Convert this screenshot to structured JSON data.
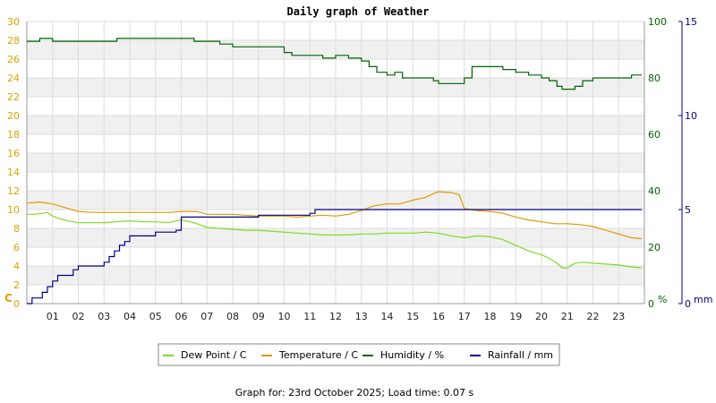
{
  "chart_data": {
    "type": "line",
    "title": "Daily graph of Weather",
    "footer": "Graph for: 23rd October 2025; Load time: 0.07 s",
    "x_ticks": [
      "01",
      "02",
      "03",
      "04",
      "05",
      "06",
      "07",
      "08",
      "09",
      "10",
      "11",
      "12",
      "13",
      "14",
      "15",
      "16",
      "17",
      "18",
      "19",
      "20",
      "21",
      "22",
      "23"
    ],
    "xlim": [
      0,
      24
    ],
    "axes": {
      "left": {
        "unit": "C",
        "min": 0,
        "max": 30,
        "ticks": [
          "0",
          "2",
          "4",
          "6",
          "8",
          "10",
          "12",
          "14",
          "16",
          "18",
          "20",
          "22",
          "24",
          "26",
          "28",
          "30"
        ],
        "color": "#e0a000"
      },
      "mid": {
        "unit": "%",
        "min": 0,
        "max": 100,
        "ticks": [
          "0",
          "20",
          "40",
          "60",
          "80",
          "100"
        ],
        "color": "#006400"
      },
      "right": {
        "unit": "mm",
        "min": 0,
        "max": 15,
        "ticks": [
          "0",
          "5",
          "10",
          "15"
        ],
        "color": "#00008b"
      }
    },
    "grid": true,
    "legend_position": "bottom",
    "series": [
      {
        "name": "Dew Point / C",
        "axis": "left",
        "color": "#7ddc1f",
        "x": [
          0,
          0.3,
          0.6,
          0.8,
          1.0,
          1.3,
          1.6,
          2.0,
          2.5,
          3.0,
          3.5,
          4.0,
          4.5,
          5.0,
          5.5,
          6.0,
          6.5,
          7.0,
          7.5,
          8.0,
          8.5,
          9.0,
          9.5,
          10.0,
          10.5,
          11.0,
          11.5,
          12.0,
          12.5,
          13.0,
          13.5,
          14.0,
          14.5,
          15.0,
          15.5,
          16.0,
          16.5,
          17.0,
          17.5,
          18.0,
          18.5,
          19.0,
          19.5,
          20.0,
          20.3,
          20.6,
          20.8,
          21.0,
          21.3,
          21.6,
          22.0,
          22.5,
          23.0,
          23.5,
          23.9
        ],
        "y": [
          9.5,
          9.5,
          9.6,
          9.7,
          9.3,
          9.0,
          8.8,
          8.6,
          8.6,
          8.6,
          8.7,
          8.8,
          8.7,
          8.7,
          8.6,
          8.9,
          8.6,
          8.1,
          8.0,
          7.9,
          7.8,
          7.8,
          7.7,
          7.6,
          7.5,
          7.4,
          7.3,
          7.3,
          7.3,
          7.4,
          7.4,
          7.5,
          7.5,
          7.5,
          7.6,
          7.5,
          7.2,
          7.0,
          7.2,
          7.1,
          6.8,
          6.2,
          5.6,
          5.2,
          4.8,
          4.3,
          3.8,
          3.8,
          4.3,
          4.4,
          4.3,
          4.2,
          4.1,
          3.9,
          3.8
        ]
      },
      {
        "name": "Temperature / C",
        "axis": "left",
        "color": "#e09a00",
        "x": [
          0,
          0.5,
          1.0,
          1.5,
          2.0,
          2.5,
          3.0,
          3.5,
          4.0,
          4.5,
          5.0,
          5.5,
          6.0,
          6.3,
          6.6,
          7.0,
          7.5,
          8.0,
          8.5,
          9.0,
          9.5,
          10.0,
          10.5,
          11.0,
          11.5,
          12.0,
          12.5,
          13.0,
          13.5,
          14.0,
          14.5,
          15.0,
          15.5,
          15.8,
          16.0,
          16.5,
          16.8,
          17.0,
          17.5,
          18.0,
          18.5,
          19.0,
          19.5,
          20.0,
          20.5,
          21.0,
          21.5,
          22.0,
          22.5,
          23.0,
          23.5,
          23.9
        ],
        "y": [
          10.7,
          10.8,
          10.6,
          10.2,
          9.8,
          9.7,
          9.7,
          9.7,
          9.7,
          9.7,
          9.7,
          9.7,
          9.8,
          9.8,
          9.8,
          9.5,
          9.5,
          9.5,
          9.4,
          9.3,
          9.3,
          9.3,
          9.2,
          9.3,
          9.4,
          9.3,
          9.5,
          9.9,
          10.4,
          10.6,
          10.6,
          11.0,
          11.3,
          11.7,
          11.9,
          11.8,
          11.6,
          10.1,
          9.9,
          9.8,
          9.6,
          9.2,
          8.9,
          8.7,
          8.5,
          8.5,
          8.4,
          8.2,
          7.8,
          7.4,
          7.0,
          6.9
        ]
      },
      {
        "name": "Humidity / %",
        "axis": "mid",
        "color": "#006400",
        "x": [
          0,
          0.5,
          1.0,
          1.5,
          2.0,
          2.5,
          3.0,
          3.5,
          4.0,
          4.5,
          5.0,
          5.5,
          6.0,
          6.5,
          7.0,
          7.5,
          8.0,
          8.5,
          9.0,
          9.5,
          10.0,
          10.3,
          10.6,
          11.0,
          11.5,
          12.0,
          12.5,
          13.0,
          13.3,
          13.6,
          14.0,
          14.3,
          14.6,
          15.0,
          15.5,
          15.8,
          16.0,
          16.5,
          16.8,
          17.0,
          17.3,
          17.6,
          18.0,
          18.5,
          19.0,
          19.5,
          20.0,
          20.3,
          20.6,
          20.8,
          21.0,
          21.3,
          21.6,
          22.0,
          22.5,
          23.0,
          23.5,
          23.9
        ],
        "y": [
          93,
          94,
          93,
          93,
          93,
          93,
          93,
          94,
          94,
          94,
          94,
          94,
          94,
          93,
          93,
          92,
          91,
          91,
          91,
          91,
          89,
          88,
          88,
          88,
          87,
          88,
          87,
          86,
          84,
          82,
          81,
          82,
          80,
          80,
          80,
          79,
          78,
          78,
          78,
          80,
          84,
          84,
          84,
          83,
          82,
          81,
          80,
          79,
          77,
          76,
          76,
          77,
          79,
          80,
          80,
          80,
          81,
          81
        ]
      },
      {
        "name": "Rainfall / mm",
        "axis": "right",
        "color": "#00008b",
        "x": [
          0,
          0.2,
          0.4,
          0.6,
          0.8,
          1.0,
          1.2,
          1.5,
          1.8,
          2.0,
          2.5,
          3.0,
          3.2,
          3.4,
          3.6,
          3.8,
          4.0,
          4.5,
          5.0,
          5.5,
          5.8,
          6.0,
          6.2,
          6.5,
          7.0,
          7.5,
          8.0,
          8.5,
          9.0,
          9.5,
          10.0,
          10.5,
          11.0,
          11.2,
          12.0,
          14.0,
          16.0,
          18.0,
          20.0,
          22.0,
          23.9
        ],
        "y": [
          0,
          0.3,
          0.3,
          0.6,
          0.9,
          1.2,
          1.5,
          1.5,
          1.8,
          2.0,
          2.0,
          2.2,
          2.5,
          2.8,
          3.1,
          3.3,
          3.6,
          3.6,
          3.8,
          3.8,
          3.9,
          4.6,
          4.6,
          4.6,
          4.6,
          4.6,
          4.6,
          4.6,
          4.7,
          4.7,
          4.7,
          4.7,
          4.8,
          5.0,
          5.0,
          5.0,
          5.0,
          5.0,
          5.0,
          5.0,
          5.0
        ]
      }
    ]
  }
}
